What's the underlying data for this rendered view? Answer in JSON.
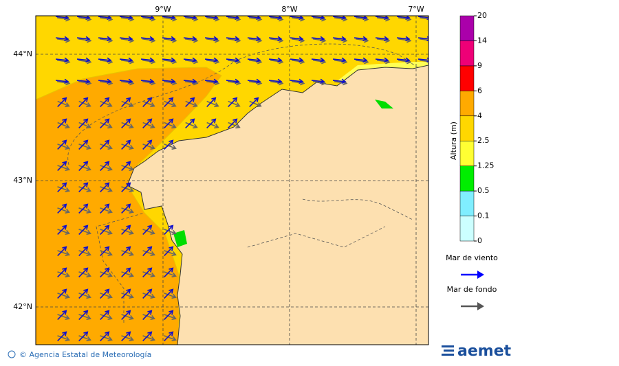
{
  "map": {
    "lon_labels": [
      "9°W",
      "8°W",
      "7°W"
    ],
    "lat_labels": [
      "44°N",
      "43°N",
      "42°N"
    ]
  },
  "colorbar": {
    "label": "Altura (m)",
    "ticks": [
      0,
      0.1,
      0.5,
      1.25,
      2.5,
      4,
      6,
      9,
      14,
      20
    ],
    "colors": [
      "#ccffff",
      "#80eeff",
      "#00ee00",
      "#ffff33",
      "#ffd700",
      "#ffaa00",
      "#ff0000",
      "#ee0077",
      "#aa00aa"
    ]
  },
  "legend": {
    "items": [
      {
        "label": "Mar de viento",
        "color": "#0000ff"
      },
      {
        "label": "Mar de fondo",
        "color": "#555555"
      }
    ]
  },
  "footer": {
    "credit": "© Agencia Estatal de Meteorología",
    "logo": "aemet"
  }
}
